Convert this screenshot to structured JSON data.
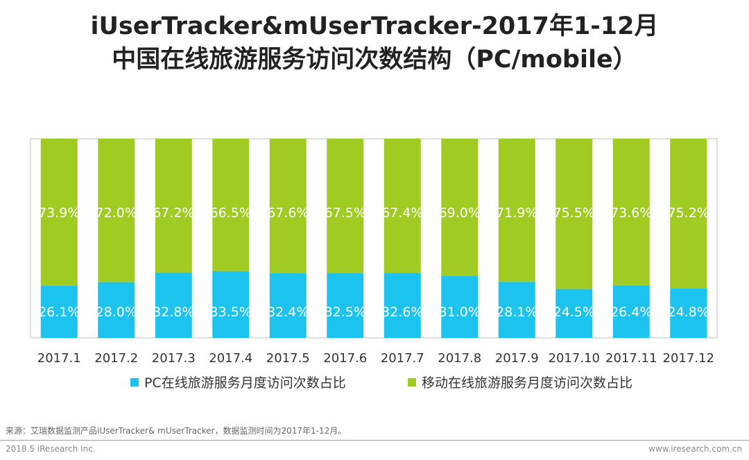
{
  "title": {
    "line1": "iUserTracker&mUserTracker-2017年1-12月",
    "line2": "中国在线旅游服务访问次数结构（PC/mobile）"
  },
  "chart_data": {
    "type": "bar",
    "stacked": true,
    "percent": true,
    "categories": [
      "2017.1",
      "2017.2",
      "2017.3",
      "2017.4",
      "2017.5",
      "2017.6",
      "2017.7",
      "2017.8",
      "2017.9",
      "2017.10",
      "2017.11",
      "2017.12"
    ],
    "series": [
      {
        "name": "PC在线旅游服务月度访问次数占比",
        "color": "#1cc3ee",
        "values": [
          26.1,
          28.0,
          32.8,
          33.5,
          32.4,
          32.5,
          32.6,
          31.0,
          28.1,
          24.5,
          26.4,
          24.8
        ]
      },
      {
        "name": "移动在线旅游服务月度访问次数占比",
        "color": "#9fcb22",
        "values": [
          73.9,
          72.0,
          67.2,
          66.5,
          67.6,
          67.5,
          67.4,
          69.0,
          71.9,
          75.5,
          73.6,
          75.2
        ]
      }
    ],
    "ylim": [
      0,
      100
    ],
    "unit": "%",
    "legend_position": "bottom"
  },
  "source": "来源：艾瑞数据监测产品iUserTracker& mUserTracker，数据监测时间为2017年1-12月。",
  "footer": {
    "left": "2018.5 iResearch Inc.",
    "right": "www.iresearch.com.cn"
  }
}
